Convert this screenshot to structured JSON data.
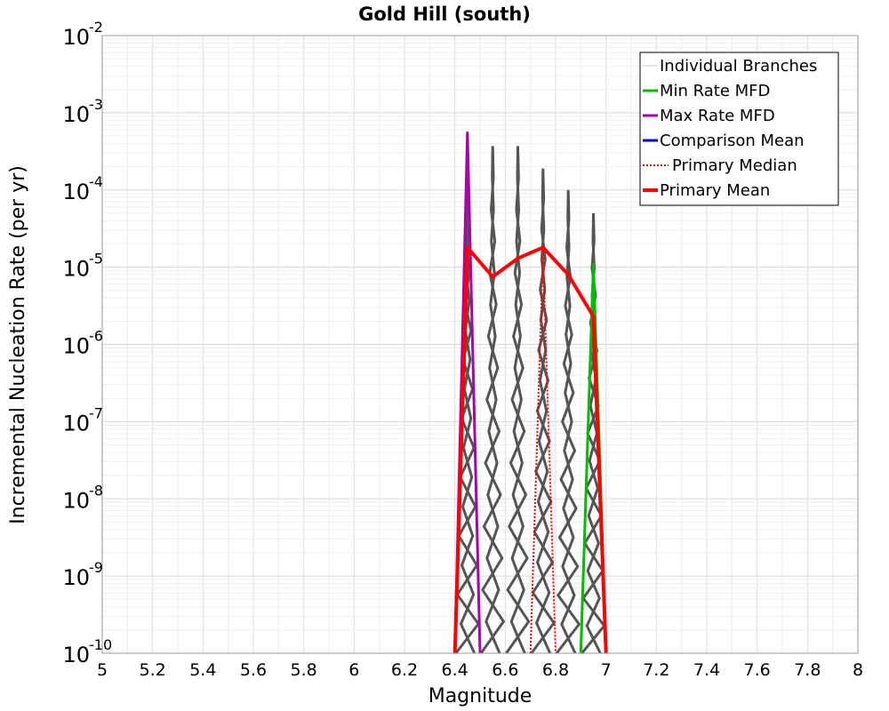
{
  "chart_data": {
    "type": "line",
    "title": "Gold Hill (south)",
    "xlabel": "Magnitude",
    "ylabel": "Incremental Nucleation Rate (per yr)",
    "xlim": [
      5,
      8
    ],
    "ylim_log10": [
      -10,
      -2
    ],
    "y_scale": "log",
    "grid": true,
    "legend_placement": "top-right",
    "x_ticks": [
      "5",
      "5.2",
      "5.4",
      "5.6",
      "5.8",
      "6",
      "6.2",
      "6.4",
      "6.6",
      "6.8",
      "7",
      "7.2",
      "7.4",
      "7.6",
      "7.8",
      "8"
    ],
    "y_ticks": [
      {
        "base": "10",
        "exp": "-10",
        "value": 1e-10
      },
      {
        "base": "10",
        "exp": "-9",
        "value": 1e-09
      },
      {
        "base": "10",
        "exp": "-8",
        "value": 1e-08
      },
      {
        "base": "10",
        "exp": "-7",
        "value": 1e-07
      },
      {
        "base": "10",
        "exp": "-6",
        "value": 1e-06
      },
      {
        "base": "10",
        "exp": "-5",
        "value": 1e-05
      },
      {
        "base": "10",
        "exp": "-4",
        "value": 0.0001
      },
      {
        "base": "10",
        "exp": "-3",
        "value": 0.001
      },
      {
        "base": "10",
        "exp": "-2",
        "value": 0.01
      }
    ],
    "series": [
      {
        "name": "Individual Branches",
        "color": "#555555",
        "style": "solid-thin",
        "spikes": [
          {
            "x": 6.45,
            "y": 0.00012
          },
          {
            "x": 6.55,
            "y": 0.00037
          },
          {
            "x": 6.65,
            "y": 0.00037
          },
          {
            "x": 6.75,
            "y": 0.00019
          },
          {
            "x": 6.85,
            "y": 0.0001
          },
          {
            "x": 6.95,
            "y": 5e-05
          }
        ]
      },
      {
        "name": "Min Rate MFD",
        "color": "#00bb00",
        "style": "solid",
        "points": [
          {
            "x": 6.9,
            "y": 1e-10
          },
          {
            "x": 6.95,
            "y": 1.1e-05
          },
          {
            "x": 7.0,
            "y": 1e-10
          }
        ]
      },
      {
        "name": "Max Rate MFD",
        "color": "#aa00aa",
        "style": "solid",
        "points": [
          {
            "x": 6.4,
            "y": 1e-10
          },
          {
            "x": 6.45,
            "y": 0.00055
          },
          {
            "x": 6.5,
            "y": 1e-10
          }
        ]
      },
      {
        "name": "Comparison Mean",
        "color": "#0000dd",
        "style": "solid",
        "points": []
      },
      {
        "name": "Primary Median",
        "color": "#ff0000",
        "style": "dotted",
        "points": [
          {
            "x": 6.7,
            "y": 1e-10
          },
          {
            "x": 6.75,
            "y": 1.6e-05
          },
          {
            "x": 6.8,
            "y": 1e-10
          }
        ]
      },
      {
        "name": "Primary Mean",
        "color": "#ff0000",
        "style": "solid-thick",
        "points": [
          {
            "x": 6.4,
            "y": 1e-10
          },
          {
            "x": 6.45,
            "y": 1.8e-05
          },
          {
            "x": 6.55,
            "y": 7.5e-06
          },
          {
            "x": 6.65,
            "y": 1.3e-05
          },
          {
            "x": 6.75,
            "y": 1.8e-05
          },
          {
            "x": 6.85,
            "y": 8e-06
          },
          {
            "x": 6.95,
            "y": 2.3e-06
          },
          {
            "x": 7.0,
            "y": 1e-10
          }
        ]
      }
    ]
  }
}
